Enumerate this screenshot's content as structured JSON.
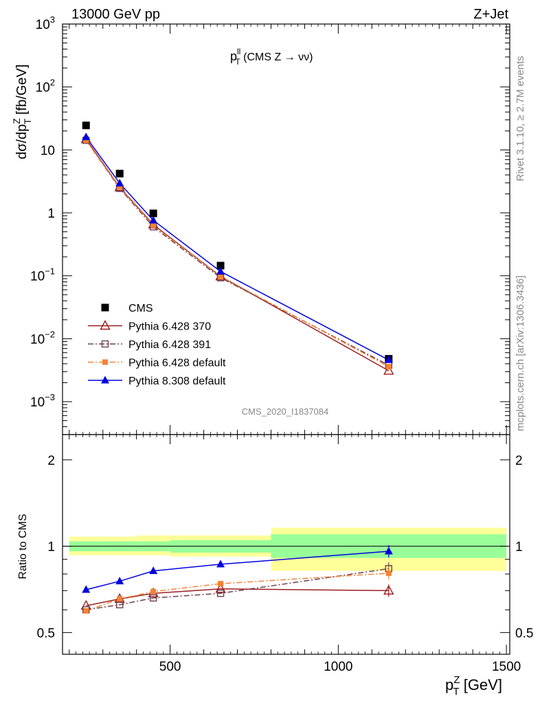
{
  "header": {
    "left": "13000 GeV pp",
    "right": "Z+Jet"
  },
  "side_text": {
    "rivet": "Rivet 3.1.10, ≥ 2.7M events",
    "mcplots": "mcplots.cern.ch [arXiv:1306.3436]"
  },
  "colors": {
    "cms": "#000000",
    "py370": "#9b1c1f",
    "py391": "#6b3f4e",
    "pydefault": "#f58233",
    "py8": "#0000dd",
    "band_inner": "#99ff99",
    "band_outer": "#ffff99"
  },
  "chart_data": [
    {
      "type": "line",
      "title_main": "p",
      "title_sup": "ll",
      "title_sub": "T",
      "title_rest": " (CMS Z → νν)",
      "ylabel": "dσ/dp",
      "ylabel_sup": "Z",
      "ylabel_sub": "T",
      "ylabel_rest": " [fb/GeV]",
      "yscale": "log",
      "ylim": [
        0.0003,
        1000
      ],
      "xlim": [
        180,
        1510
      ],
      "y_ticks": [
        {
          "v": 0.001,
          "b": "10",
          "e": "−3"
        },
        {
          "v": 0.01,
          "b": "10",
          "e": "−2"
        },
        {
          "v": 0.1,
          "b": "10",
          "e": "−1"
        },
        {
          "v": 1,
          "b": "1",
          "e": ""
        },
        {
          "v": 10,
          "b": "10",
          "e": ""
        },
        {
          "v": 100,
          "b": "10",
          "e": "2"
        },
        {
          "v": 1000,
          "b": "10",
          "e": "3"
        }
      ],
      "watermark": "CMS_2020_I1837084",
      "legend_position": "lower-left",
      "series": [
        {
          "name": "CMS",
          "key": "cms",
          "marker": "filled-square",
          "line": "none",
          "x": [
            250,
            350,
            450,
            650,
            1150
          ],
          "y": [
            24.5,
            4.2,
            0.98,
            0.145,
            0.0048
          ]
        },
        {
          "name": "Pythia 6.428 370",
          "key": "py370",
          "marker": "open-triangle",
          "line": "solid",
          "x": [
            250,
            350,
            450,
            650,
            1150
          ],
          "y": [
            14.8,
            2.55,
            0.65,
            0.098,
            0.0031
          ]
        },
        {
          "name": "Pythia 6.428 391",
          "key": "py391",
          "marker": "open-square",
          "line": "dashdot",
          "x": [
            250,
            350,
            450,
            650,
            1150
          ],
          "y": [
            14.2,
            2.45,
            0.6,
            0.093,
            0.0038
          ]
        },
        {
          "name": "Pythia 6.428 default",
          "key": "pydefault",
          "marker": "filled-small-square",
          "line": "dashdot",
          "x": [
            250,
            350,
            450,
            650,
            1150
          ],
          "y": [
            14.2,
            2.55,
            0.63,
            0.098,
            0.0036
          ]
        },
        {
          "name": "Pythia 8.308 default",
          "key": "py8",
          "marker": "filled-triangle",
          "line": "solid",
          "x": [
            250,
            350,
            450,
            650,
            1150
          ],
          "y": [
            16.0,
            2.95,
            0.76,
            0.117,
            0.0046
          ]
        }
      ]
    },
    {
      "type": "line",
      "ylabel": "Ratio to CMS",
      "xlabel": "p",
      "xlabel_sup": "Z",
      "xlabel_sub": "T",
      "xlabel_rest": " [GeV]",
      "yscale": "log",
      "ylim": [
        0.42,
        2.45
      ],
      "xlim": [
        180,
        1510
      ],
      "x_ticks": [
        500,
        1000,
        1500
      ],
      "y_ticks": [
        0.5,
        1,
        2
      ],
      "reference_line": 1,
      "bands": [
        {
          "x0": 200,
          "x1": 300,
          "inner": [
            0.96,
            1.04
          ],
          "outer": [
            0.93,
            1.08
          ]
        },
        {
          "x0": 300,
          "x1": 400,
          "inner": [
            0.96,
            1.04
          ],
          "outer": [
            0.93,
            1.08
          ]
        },
        {
          "x0": 400,
          "x1": 500,
          "inner": [
            0.96,
            1.04
          ],
          "outer": [
            0.93,
            1.09
          ]
        },
        {
          "x0": 500,
          "x1": 800,
          "inner": [
            0.95,
            1.05
          ],
          "outer": [
            0.92,
            1.09
          ]
        },
        {
          "x0": 800,
          "x1": 1500,
          "inner": [
            0.91,
            1.1
          ],
          "outer": [
            0.82,
            1.16
          ]
        }
      ],
      "series": [
        {
          "key": "py370",
          "marker": "open-triangle",
          "line": "solid",
          "x": [
            250,
            350,
            450,
            650,
            1150
          ],
          "y": [
            0.62,
            0.655,
            0.685,
            0.71,
            0.7
          ]
        },
        {
          "key": "py391",
          "marker": "open-square",
          "line": "dashdot",
          "x": [
            250,
            350,
            450,
            650,
            1150
          ],
          "y": [
            0.6,
            0.625,
            0.66,
            0.685,
            0.835
          ]
        },
        {
          "key": "pydefault",
          "marker": "filled-small-square",
          "line": "dashdot",
          "x": [
            250,
            350,
            450,
            650,
            1150
          ],
          "y": [
            0.595,
            0.655,
            0.695,
            0.74,
            0.805
          ]
        },
        {
          "key": "py8",
          "marker": "filled-triangle",
          "line": "solid",
          "x": [
            250,
            350,
            450,
            650,
            1150
          ],
          "y": [
            0.705,
            0.755,
            0.82,
            0.865,
            0.96
          ]
        }
      ]
    }
  ]
}
